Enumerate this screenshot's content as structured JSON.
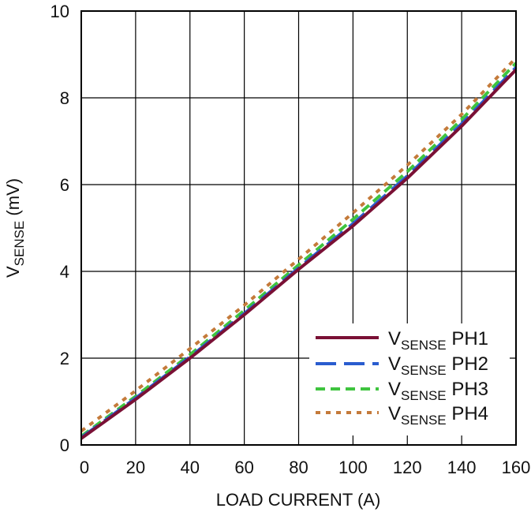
{
  "chart_data": {
    "type": "line",
    "xlabel": "LOAD CURRENT (A)",
    "ylabel": {
      "main": "V",
      "sub": "SENSE",
      "rest": " (mV)"
    },
    "xlim": [
      0,
      160
    ],
    "ylim": [
      0,
      10
    ],
    "x_ticks": [
      0,
      20,
      40,
      60,
      80,
      100,
      120,
      140,
      160
    ],
    "y_ticks": [
      0,
      2,
      4,
      6,
      8,
      10
    ],
    "grid": true,
    "legend_position": "bottom-right",
    "x": [
      0,
      20,
      40,
      60,
      80,
      100,
      120,
      140,
      160
    ],
    "series": [
      {
        "name": {
          "main": "V",
          "sub": "SENSE",
          "rest": " PH1"
        },
        "color": "#7a1035",
        "style": "solid",
        "values": [
          0.15,
          1.05,
          2.0,
          3.0,
          4.05,
          5.05,
          6.15,
          7.35,
          8.65
        ]
      },
      {
        "name": {
          "main": "V",
          "sub": "SENSE",
          "rest": " PH2"
        },
        "color": "#2a5ccf",
        "style": "dash",
        "values": [
          0.17,
          1.08,
          2.03,
          3.03,
          4.08,
          5.1,
          6.2,
          7.4,
          8.7
        ]
      },
      {
        "name": {
          "main": "V",
          "sub": "SENSE",
          "rest": " PH3"
        },
        "color": "#3fc43f",
        "style": "dash",
        "values": [
          0.2,
          1.12,
          2.08,
          3.1,
          4.15,
          5.2,
          6.3,
          7.5,
          8.8
        ]
      },
      {
        "name": {
          "main": "V",
          "sub": "SENSE",
          "rest": " PH4"
        },
        "color": "#c47a3a",
        "style": "dot",
        "values": [
          0.32,
          1.25,
          2.22,
          3.22,
          4.28,
          5.35,
          6.45,
          7.62,
          8.92
        ]
      }
    ]
  }
}
